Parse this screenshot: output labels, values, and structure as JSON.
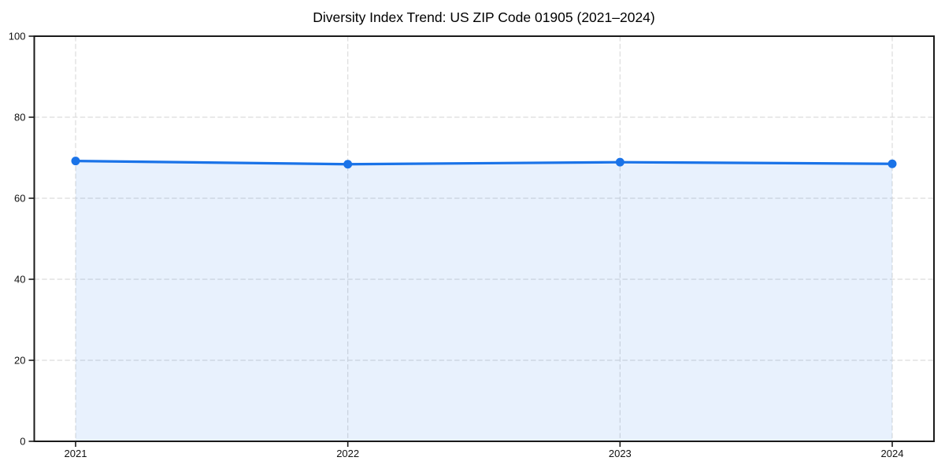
{
  "title": "Diversity Index Trend: US ZIP Code 01905 (2021–2024)",
  "chart_data": {
    "type": "area",
    "title": "Diversity Index Trend: US ZIP Code 01905 (2021–2024)",
    "categories": [
      "2021",
      "2022",
      "2023",
      "2024"
    ],
    "values": [
      69.2,
      68.4,
      68.9,
      68.5
    ],
    "xlabel": "",
    "ylabel": "",
    "ylim": [
      0,
      100
    ],
    "yticks": [
      0,
      20,
      40,
      60,
      80,
      100
    ],
    "grid": true,
    "grid_style": "dashed",
    "legend": false,
    "colors": {
      "line": "#1a73e8",
      "marker": "#1a73e8",
      "fill": "#1a73e8",
      "fill_opacity": 0.1,
      "grid": "#dcdcdc",
      "axis": "#1a1a1a",
      "tick_label": "#111111",
      "background": "#ffffff",
      "title": "#000000"
    }
  }
}
